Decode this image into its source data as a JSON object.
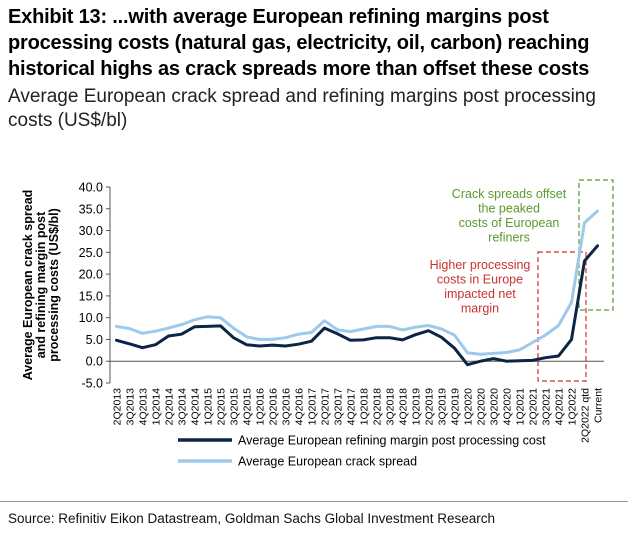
{
  "header": {
    "title": "Exhibit 13: ...with average European refining margins post processing costs (natural gas, electricity, oil, carbon) reaching historical highs as crack spreads more than offset these costs",
    "subtitle": "Average European crack spread and refining margins post processing costs (US$/bl)"
  },
  "footer": {
    "source": "Source: Refinitiv Eikon Datastream, Goldman Sachs Global Investment Research"
  },
  "colors": {
    "margin_line": "#0b2447",
    "crack_line": "#9dc9ec",
    "annotation_green": "#5a9a2e",
    "annotation_red": "#c8322f",
    "axis": "#555555"
  },
  "chart_data": {
    "type": "line",
    "title": "Average European crack spread and refining margins post processing costs (US$/bl)",
    "ylabel": "Average European crack spread and refining margin post processing costs (US$/bl)",
    "ylim": [
      -5,
      40
    ],
    "yticks": [
      -5,
      0,
      5,
      10,
      15,
      20,
      25,
      30,
      35,
      40
    ],
    "ytick_labels": [
      "-5.0",
      "0.0",
      "5.0",
      "10.0",
      "15.0",
      "20.0",
      "25.0",
      "30.0",
      "35.0",
      "40.0"
    ],
    "categories": [
      "2Q2013",
      "3Q2013",
      "4Q2013",
      "1Q2014",
      "2Q2014",
      "3Q2014",
      "4Q2014",
      "1Q2015",
      "2Q2015",
      "3Q2015",
      "4Q2015",
      "1Q2016",
      "2Q2016",
      "3Q2016",
      "4Q2016",
      "1Q2017",
      "2Q2017",
      "3Q2017",
      "4Q2017",
      "1Q2018",
      "2Q2018",
      "3Q2018",
      "4Q2018",
      "1Q2019",
      "2Q2019",
      "3Q2019",
      "4Q2019",
      "1Q2020",
      "2Q2020",
      "3Q2020",
      "4Q2020",
      "1Q2021",
      "2Q2021",
      "3Q2021",
      "4Q2021",
      "1Q2022",
      "2Q2022 qtd",
      "Current"
    ],
    "series": [
      {
        "name": "Average European refining margin post processing cost",
        "values": [
          4.8,
          4.0,
          3.1,
          3.8,
          5.8,
          6.2,
          7.9,
          8.0,
          8.1,
          5.4,
          3.8,
          3.5,
          3.7,
          3.5,
          3.9,
          4.6,
          7.6,
          6.3,
          4.8,
          4.9,
          5.4,
          5.4,
          4.9,
          6.1,
          7.0,
          5.5,
          3.0,
          -0.8,
          0.0,
          0.6,
          0.0,
          0.1,
          0.2,
          0.8,
          1.2,
          5.0,
          23.0,
          26.5
        ]
      },
      {
        "name": "Average European crack spread",
        "values": [
          8.0,
          7.5,
          6.4,
          6.9,
          7.6,
          8.4,
          9.5,
          10.2,
          10.0,
          7.6,
          5.6,
          5.0,
          5.0,
          5.4,
          6.2,
          6.6,
          9.3,
          7.2,
          6.8,
          7.4,
          8.0,
          8.0,
          7.2,
          7.8,
          8.2,
          7.4,
          6.0,
          1.9,
          1.6,
          1.8,
          2.0,
          2.6,
          4.3,
          6.0,
          8.2,
          13.5,
          31.8,
          34.5
        ]
      }
    ],
    "legend": {
      "position": "bottom",
      "entries": [
        "Average European refining margin post processing cost",
        "Average European crack spread"
      ]
    },
    "annotations": [
      {
        "text": "Crack spreads offset the peaked costs of European refiners",
        "lines": [
          "Crack spreads offset",
          "the peaked",
          "costs of European",
          "refiners"
        ],
        "color": "green"
      },
      {
        "text": "Higher processing costs in Europe impacted net margin",
        "lines": [
          "Higher processing",
          "costs in Europe",
          "impacted net",
          "margin"
        ],
        "color": "red"
      }
    ],
    "grid": false
  }
}
